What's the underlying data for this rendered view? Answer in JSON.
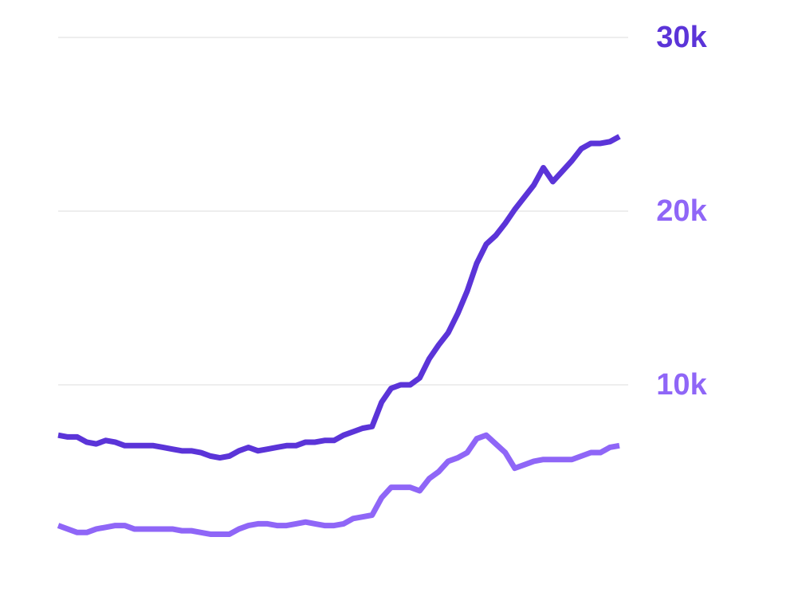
{
  "chart_data": {
    "type": "line",
    "categories": [
      null,
      null,
      null,
      null,
      null,
      null,
      null,
      null,
      null,
      null,
      null,
      null,
      null,
      null,
      null,
      null,
      null,
      null,
      null,
      null,
      null,
      null,
      null,
      null,
      null,
      null,
      null,
      null,
      null,
      null,
      null,
      null,
      null,
      null,
      null,
      null,
      null,
      null,
      null,
      null,
      null,
      null,
      null,
      null,
      null,
      null,
      null,
      null,
      null,
      null,
      null,
      null,
      null,
      null,
      null,
      null,
      null,
      null,
      null,
      null
    ],
    "series": [
      {
        "color": "#5b34d8",
        "values": [
          7100,
          7000,
          7000,
          6700,
          6600,
          6800,
          6700,
          6500,
          6500,
          6500,
          6500,
          6400,
          6300,
          6200,
          6200,
          6100,
          5900,
          5800,
          5900,
          6200,
          6400,
          6200,
          6300,
          6400,
          6500,
          6500,
          6700,
          6700,
          6800,
          6800,
          7100,
          7300,
          7500,
          7600,
          9000,
          9800,
          10000,
          10000,
          10400,
          11500,
          12300,
          13000,
          14100,
          15400,
          17000,
          18100,
          18600,
          19300,
          20100,
          20800,
          21500,
          22500,
          21700,
          22300,
          22900,
          23600,
          23900,
          23900,
          24000,
          24300
        ]
      },
      {
        "color": "#8f66f7",
        "values": [
          1900,
          1700,
          1500,
          1500,
          1700,
          1800,
          1900,
          1900,
          1700,
          1700,
          1700,
          1700,
          1700,
          1600,
          1600,
          1500,
          1400,
          1400,
          1400,
          1700,
          1900,
          2000,
          2000,
          1900,
          1900,
          2000,
          2100,
          2000,
          1900,
          1900,
          2000,
          2300,
          2400,
          2500,
          3500,
          4100,
          4100,
          4100,
          3900,
          4600,
          5000,
          5600,
          5800,
          6100,
          6900,
          7100,
          6600,
          6100,
          5200,
          5400,
          5600,
          5700,
          5700,
          5700,
          5700,
          5900,
          6100,
          6100,
          6400,
          6500
        ]
      }
    ],
    "ylim": [
      0,
      32000
    ],
    "yticks": [
      {
        "value": 10000,
        "label": "10k"
      },
      {
        "value": 20000,
        "label": "20k"
      },
      {
        "value": 30000,
        "label": "30k"
      }
    ],
    "ytick_colors": [
      "#8f66f7",
      "#8f66f7",
      "#5b34d8"
    ],
    "y_axis_side": "right",
    "grid": true
  }
}
